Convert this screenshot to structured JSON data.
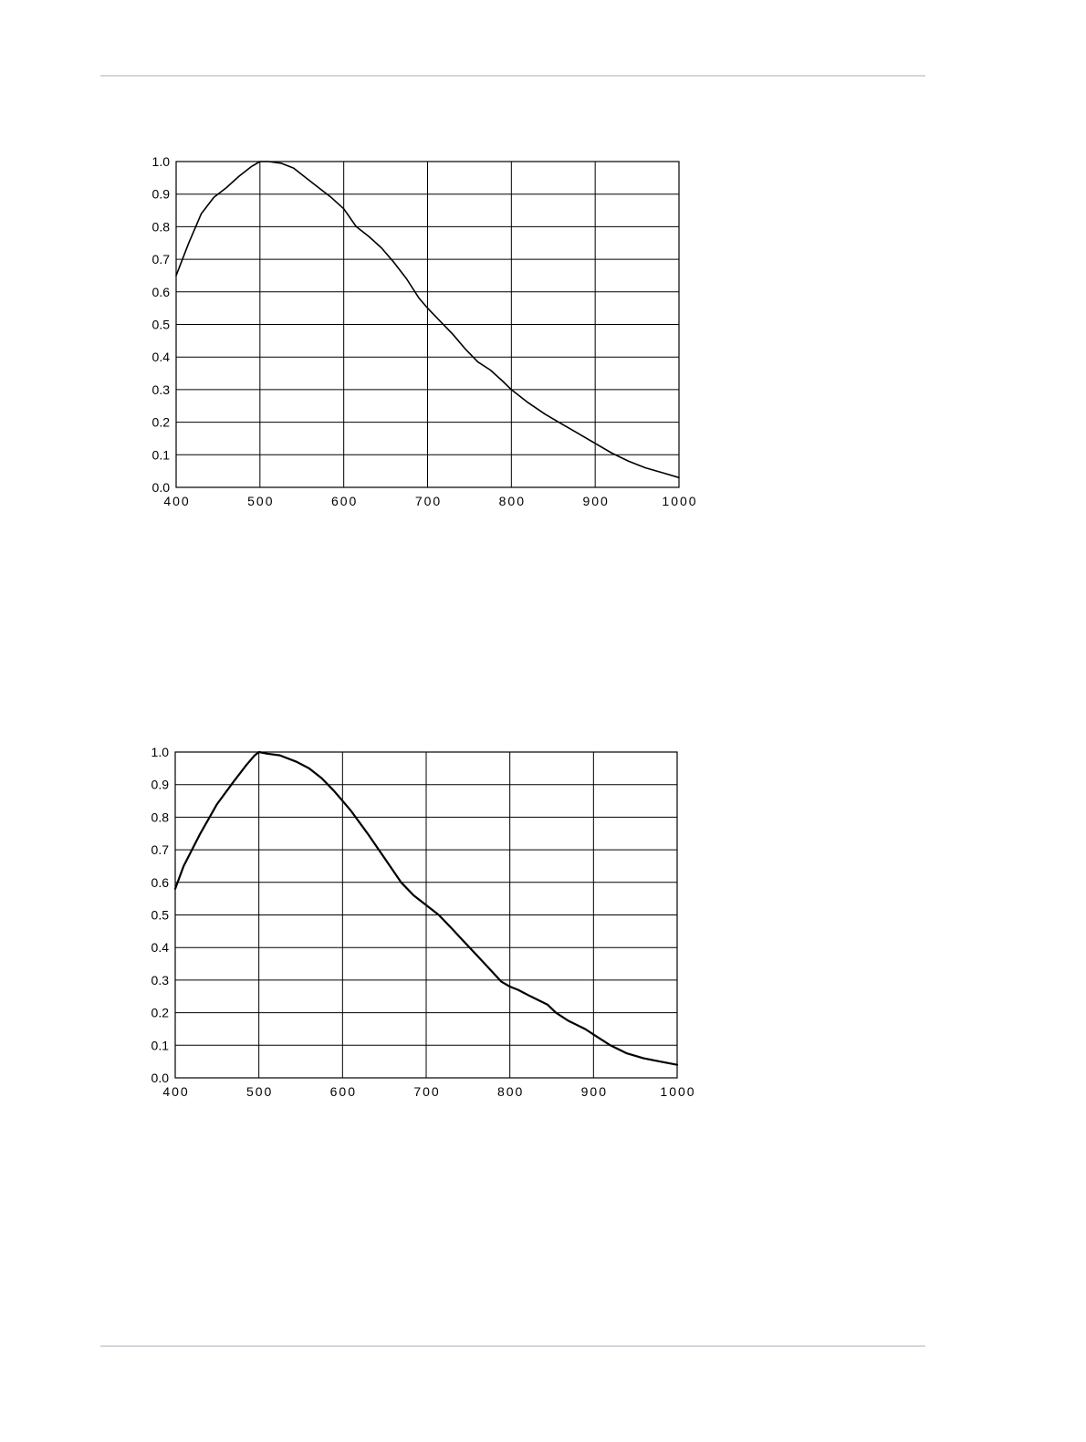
{
  "chart_data": [
    {
      "type": "line",
      "xlim": [
        400,
        1000
      ],
      "ylim": [
        0.0,
        1.0
      ],
      "grid": true,
      "x_ticks": [
        "400",
        "500",
        "600",
        "700",
        "800",
        "900",
        "1000"
      ],
      "y_ticks": [
        "0.0",
        "0.1",
        "0.2",
        "0.3",
        "0.4",
        "0.5",
        "0.6",
        "0.7",
        "0.8",
        "0.9",
        "1.0"
      ],
      "series": [
        {
          "x": [
            400,
            415,
            430,
            445,
            460,
            475,
            490,
            500,
            510,
            525,
            540,
            555,
            570,
            585,
            600,
            615,
            630,
            645,
            660,
            675,
            690,
            700,
            715,
            730,
            745,
            760,
            775,
            790,
            800,
            820,
            840,
            860,
            880,
            900,
            920,
            940,
            960,
            980,
            1000
          ],
          "y": [
            0.65,
            0.75,
            0.84,
            0.89,
            0.92,
            0.955,
            0.985,
            1.0,
            1.0,
            0.995,
            0.98,
            0.95,
            0.92,
            0.89,
            0.855,
            0.8,
            0.77,
            0.735,
            0.69,
            0.64,
            0.58,
            0.55,
            0.51,
            0.47,
            0.425,
            0.385,
            0.36,
            0.325,
            0.3,
            0.26,
            0.225,
            0.195,
            0.165,
            0.135,
            0.105,
            0.08,
            0.06,
            0.045,
            0.03
          ],
          "color": "#000000"
        }
      ]
    },
    {
      "type": "line",
      "xlim": [
        400,
        1000
      ],
      "ylim": [
        0.0,
        1.0
      ],
      "grid": true,
      "x_ticks": [
        "400",
        "500",
        "600",
        "700",
        "800",
        "900",
        "1000"
      ],
      "y_ticks": [
        "0.0",
        "0.1",
        "0.2",
        "0.3",
        "0.4",
        "0.5",
        "0.6",
        "0.7",
        "0.8",
        "0.9",
        "1.0"
      ],
      "series": [
        {
          "x": [
            400,
            410,
            430,
            450,
            470,
            485,
            495,
            500,
            510,
            525,
            545,
            560,
            575,
            590,
            610,
            630,
            650,
            670,
            685,
            700,
            715,
            730,
            750,
            770,
            790,
            800,
            810,
            825,
            845,
            855,
            870,
            890,
            905,
            920,
            940,
            960,
            980,
            1000
          ],
          "y": [
            0.58,
            0.65,
            0.75,
            0.84,
            0.91,
            0.96,
            0.99,
            1.0,
            0.995,
            0.99,
            0.97,
            0.95,
            0.92,
            0.88,
            0.82,
            0.75,
            0.675,
            0.6,
            0.56,
            0.53,
            0.5,
            0.46,
            0.405,
            0.35,
            0.295,
            0.28,
            0.27,
            0.25,
            0.225,
            0.2,
            0.175,
            0.15,
            0.125,
            0.1,
            0.075,
            0.06,
            0.05,
            0.04
          ],
          "color": "#000000"
        }
      ]
    }
  ]
}
